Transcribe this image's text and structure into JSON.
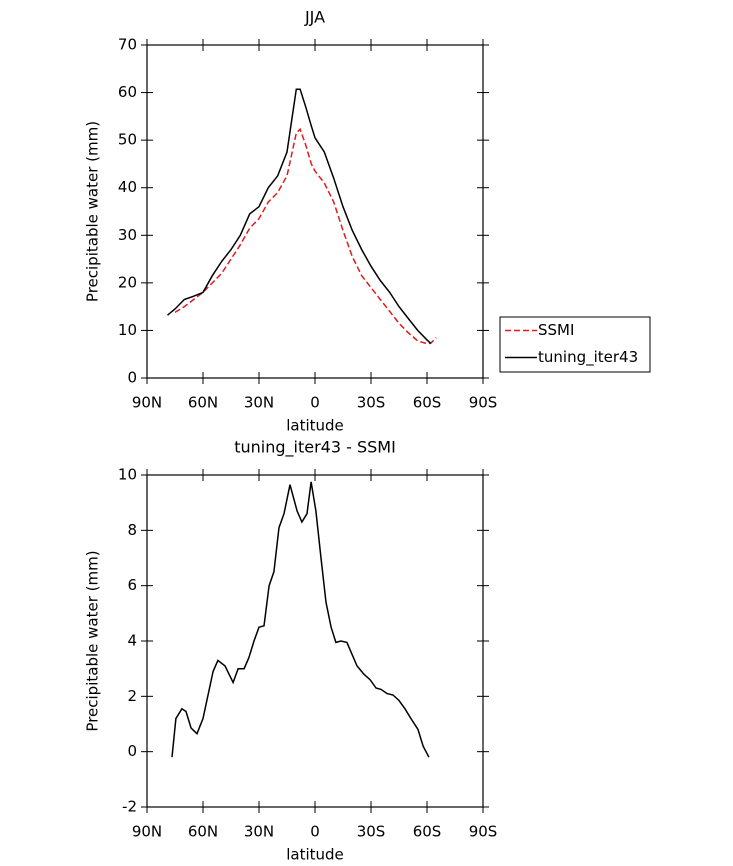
{
  "chart_data": [
    {
      "type": "line",
      "title": "JJA",
      "xlabel": "latitude",
      "ylabel": "Precipitable water (mm)",
      "x": [
        79,
        75,
        70,
        65,
        60,
        55,
        50,
        45,
        40,
        35,
        30,
        25,
        20,
        15,
        10,
        8,
        5,
        2,
        0,
        -5,
        -10,
        -15,
        -20,
        -25,
        -30,
        -35,
        -40,
        -45,
        -50,
        -55,
        -60,
        -62,
        -65
      ],
      "series": [
        {
          "name": "SSMI",
          "color": "#e41a1c",
          "dash": true,
          "values": [
            null,
            13.8,
            15,
            16.5,
            18,
            20,
            22,
            25,
            28,
            31.5,
            33.5,
            37,
            39,
            42.5,
            51.5,
            52.3,
            49,
            45,
            43.5,
            41,
            37,
            31,
            25.5,
            21.5,
            19,
            16.5,
            14,
            11.5,
            9.5,
            7.8,
            7.2,
            7.3,
            8.5
          ]
        },
        {
          "name": "tuning_iter43",
          "color": "#000000",
          "dash": false,
          "values": [
            13.2,
            14.5,
            16.5,
            17.2,
            18,
            21.5,
            24.5,
            27,
            30,
            34.5,
            36,
            40,
            42.5,
            47.5,
            60.7,
            60.7,
            57,
            53,
            50.5,
            47.5,
            42,
            36,
            31,
            27,
            23.5,
            20.5,
            18,
            15,
            12.5,
            10,
            8,
            7.3,
            null
          ]
        }
      ],
      "xlim": [
        90,
        -90
      ],
      "xticks": [
        {
          "value": 90,
          "label": "90N"
        },
        {
          "value": 60,
          "label": "60N"
        },
        {
          "value": 30,
          "label": "30N"
        },
        0,
        {
          "value": -30,
          "label": "30S"
        },
        {
          "value": -60,
          "label": "60S"
        },
        {
          "value": -90,
          "label": "90S"
        }
      ],
      "ylim": [
        0,
        70
      ],
      "yticks": [
        0,
        10,
        20,
        30,
        40,
        50,
        60,
        70
      ],
      "legend": "right"
    },
    {
      "type": "line",
      "title": "tuning_iter43 - SSMI",
      "xlabel": "latitude",
      "ylabel": "Precipitable water (mm)",
      "x": [
        76.6,
        74.5,
        71.3,
        69.1,
        66.4,
        63.2,
        60,
        54.6,
        52,
        48.2,
        43.9,
        41.2,
        38,
        35.4,
        32.7,
        30,
        27.3,
        24.6,
        22,
        19.3,
        16.6,
        13.4,
        9.6,
        7,
        4.3,
        2.1,
        -0.5,
        -3.2,
        -5.9,
        -8.6,
        -11.2,
        -13.9,
        -17.1,
        -22.5,
        -26.2,
        -29.5,
        -32.7,
        -35.4,
        -38.6,
        -41.8,
        -45,
        -48.2,
        -51.4,
        -55.2,
        -57.9,
        -61
      ],
      "series": [
        {
          "color": "#000000",
          "dash": false,
          "values": [
            -0.2,
            1.2,
            1.55,
            1.45,
            0.85,
            0.65,
            1.2,
            2.9,
            3.3,
            3.1,
            2.5,
            3.0,
            3.0,
            3.4,
            4.0,
            4.5,
            4.55,
            6.0,
            6.5,
            8.1,
            8.6,
            9.65,
            8.7,
            8.3,
            8.6,
            9.75,
            8.7,
            7.0,
            5.4,
            4.5,
            3.95,
            4.0,
            3.95,
            3.1,
            2.8,
            2.6,
            2.3,
            2.25,
            2.1,
            2.05,
            1.85,
            1.55,
            1.2,
            0.8,
            0.2,
            -0.2
          ]
        }
      ],
      "xlim": [
        90,
        -90
      ],
      "xticks": [
        {
          "value": 90,
          "label": "90N"
        },
        {
          "value": 60,
          "label": "60N"
        },
        {
          "value": 30,
          "label": "30N"
        },
        0,
        {
          "value": -30,
          "label": "30S"
        },
        {
          "value": -60,
          "label": "60S"
        },
        {
          "value": -90,
          "label": "90S"
        }
      ],
      "ylim": [
        -2,
        10
      ],
      "yticks": [
        -2,
        0,
        2,
        4,
        6,
        8,
        10
      ]
    }
  ]
}
